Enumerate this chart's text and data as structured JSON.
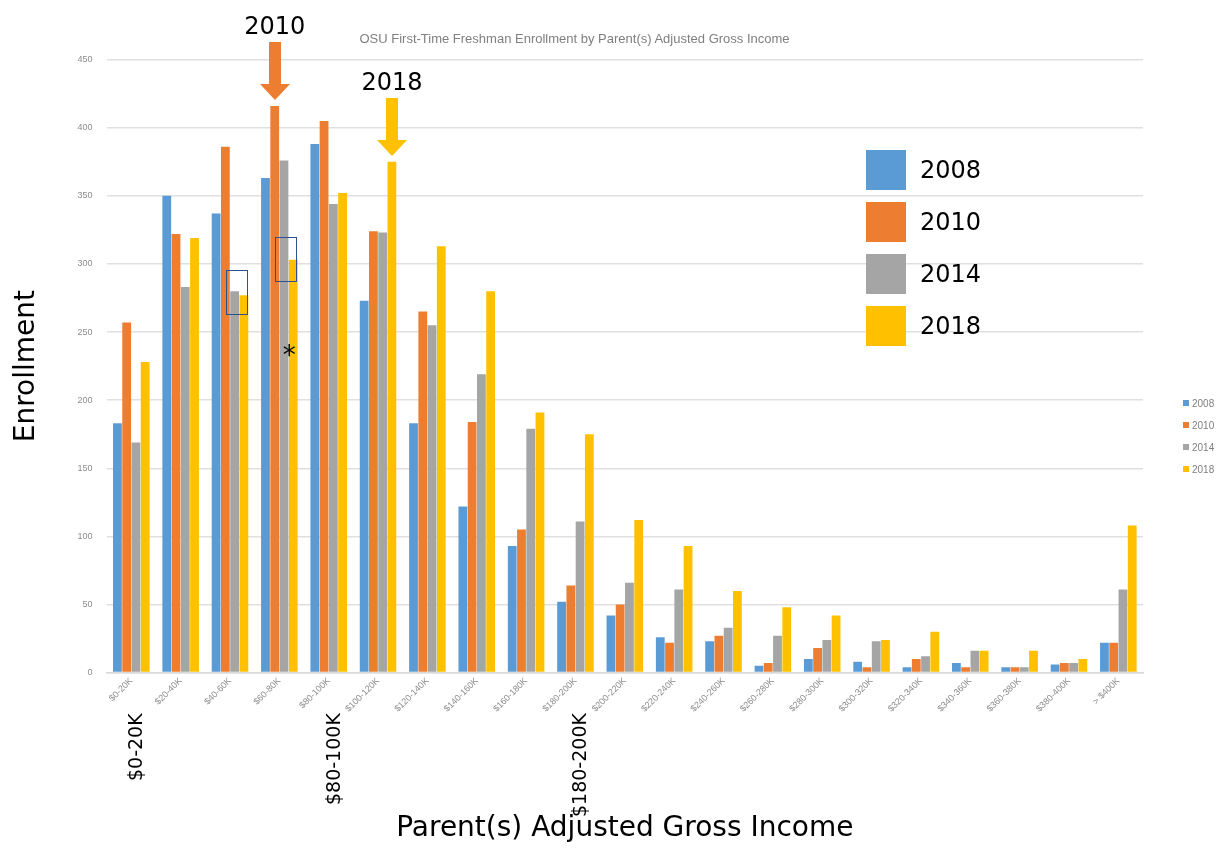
{
  "chart_data": {
    "type": "bar",
    "title": "OSU First-Time Freshman Enrollment by Parent(s) Adjusted Gross Income",
    "xlabel": "Parent(s) Adjusted Gross Income",
    "ylabel": "Enrollment",
    "categories": [
      "$0-20K",
      "$20-40K",
      "$40-60K",
      "$60-80K",
      "$80-100K",
      "$100-120K",
      "$120-140K",
      "$140-160K",
      "$160-180K",
      "$180-200K",
      "$200-220K",
      "$220-240K",
      "$240-260K",
      "$260-280K",
      "$280-300K",
      "$300-320K",
      "$320-340K",
      "$340-360K",
      "$360-380K",
      "$380-400K",
      "> $400K"
    ],
    "series": [
      {
        "name": "2008",
        "color": "#5b9bd5",
        "values": [
          183,
          350,
          337,
          363,
          388,
          273,
          183,
          122,
          93,
          52,
          42,
          26,
          23,
          5,
          10,
          8,
          4,
          7,
          4,
          6,
          22
        ]
      },
      {
        "name": "2010",
        "color": "#ed7d31",
        "values": [
          257,
          322,
          386,
          416,
          405,
          324,
          265,
          184,
          105,
          64,
          50,
          22,
          27,
          7,
          18,
          4,
          10,
          4,
          4,
          7,
          22
        ]
      },
      {
        "name": "2014",
        "color": "#a5a5a5",
        "values": [
          169,
          283,
          280,
          376,
          344,
          323,
          255,
          219,
          179,
          111,
          66,
          61,
          33,
          27,
          24,
          23,
          12,
          16,
          4,
          7,
          61
        ]
      },
      {
        "name": "2018",
        "color": "#ffc000",
        "values": [
          228,
          319,
          277,
          303,
          352,
          375,
          313,
          280,
          191,
          175,
          112,
          93,
          60,
          48,
          42,
          24,
          30,
          16,
          16,
          10,
          108
        ]
      }
    ],
    "ylim": [
      0,
      450
    ],
    "yticks": [
      0,
      50,
      100,
      150,
      200,
      250,
      300,
      350,
      400,
      450
    ],
    "grid": "y",
    "legend": "right",
    "annotations": [
      {
        "text": "2010",
        "x": "$60-80K",
        "y": 416
      },
      "2018",
      "*",
      "$0-20K",
      "$80-100K",
      "$180-200K"
    ]
  }
}
